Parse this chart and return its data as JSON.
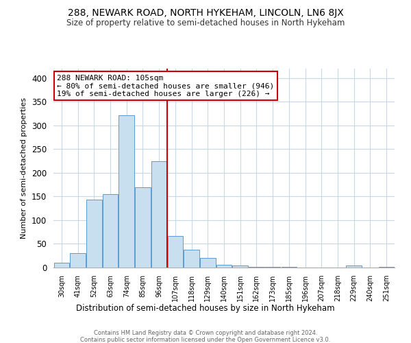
{
  "title": "288, NEWARK ROAD, NORTH HYKEHAM, LINCOLN, LN6 8JX",
  "subtitle": "Size of property relative to semi-detached houses in North Hykeham",
  "xlabel": "Distribution of semi-detached houses by size in North Hykeham",
  "ylabel": "Number of semi-detached properties",
  "bin_labels": [
    "30sqm",
    "41sqm",
    "52sqm",
    "63sqm",
    "74sqm",
    "85sqm",
    "96sqm",
    "107sqm",
    "118sqm",
    "129sqm",
    "140sqm",
    "151sqm",
    "162sqm",
    "173sqm",
    "185sqm",
    "196sqm",
    "207sqm",
    "218sqm",
    "229sqm",
    "240sqm",
    "251sqm"
  ],
  "bar_values": [
    10,
    30,
    143,
    155,
    321,
    169,
    224,
    67,
    38,
    20,
    6,
    5,
    2,
    2,
    1,
    0,
    0,
    0,
    4,
    0,
    2
  ],
  "bar_color": "#c8dff0",
  "bar_edge_color": "#5b9bd5",
  "vline_color": "#cc0000",
  "annotation_title": "288 NEWARK ROAD: 105sqm",
  "annotation_line1": "← 80% of semi-detached houses are smaller (946)",
  "annotation_line2": "19% of semi-detached houses are larger (226) →",
  "annotation_box_edge": "#cc0000",
  "ylim": [
    0,
    420
  ],
  "yticks": [
    0,
    50,
    100,
    150,
    200,
    250,
    300,
    350,
    400
  ],
  "footer1": "Contains HM Land Registry data © Crown copyright and database right 2024.",
  "footer2": "Contains public sector information licensed under the Open Government Licence v3.0.",
  "bg_color": "#ffffff",
  "grid_color": "#c8d8e8"
}
